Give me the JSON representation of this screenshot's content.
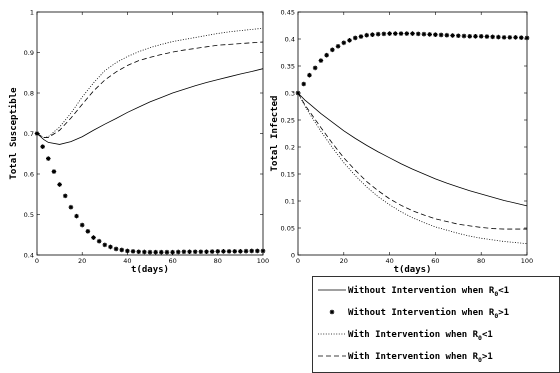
{
  "chart_data": {
    "panels": [
      {
        "type": "line",
        "xlabel": "t(days)",
        "ylabel": "Total Susceptible",
        "xlim": [
          0,
          100
        ],
        "ylim": [
          0.4,
          1.0
        ],
        "xticks": [
          "0",
          "20",
          "40",
          "60",
          "80",
          "100"
        ],
        "yticks": [
          "0.4",
          "0.5",
          "0.6",
          "0.7",
          "0.8",
          "0.9",
          "1"
        ],
        "x": [
          0,
          3,
          5,
          10,
          15,
          20,
          25,
          30,
          35,
          40,
          45,
          50,
          55,
          60,
          65,
          70,
          75,
          80,
          85,
          90,
          95,
          100
        ],
        "series": [
          {
            "name": "Without Intervention when R0<1",
            "style": "solid",
            "values": [
              0.7,
              0.685,
              0.678,
              0.673,
              0.68,
              0.692,
              0.708,
              0.723,
              0.737,
              0.752,
              0.765,
              0.778,
              0.789,
              0.8,
              0.809,
              0.818,
              0.826,
              0.833,
              0.84,
              0.847,
              0.853,
              0.86
            ]
          },
          {
            "name": "Without Intervention when R0>1",
            "style": "star",
            "values": [
              0.7,
              0.661,
              0.638,
              0.574,
              0.518,
              0.474,
              0.443,
              0.425,
              0.415,
              0.41,
              0.408,
              0.407,
              0.407,
              0.407,
              0.408,
              0.408,
              0.408,
              0.409,
              0.409,
              0.409,
              0.41,
              0.41
            ]
          },
          {
            "name": "With Intervention when R0<1",
            "style": "dotted",
            "values": [
              0.7,
              0.69,
              0.692,
              0.716,
              0.75,
              0.79,
              0.825,
              0.855,
              0.875,
              0.89,
              0.902,
              0.912,
              0.92,
              0.927,
              0.932,
              0.937,
              0.942,
              0.947,
              0.951,
              0.954,
              0.957,
              0.96
            ]
          },
          {
            "name": "With Intervention when R0>1",
            "style": "dashed",
            "values": [
              0.7,
              0.69,
              0.69,
              0.708,
              0.738,
              0.772,
              0.805,
              0.832,
              0.852,
              0.868,
              0.88,
              0.888,
              0.895,
              0.901,
              0.906,
              0.91,
              0.914,
              0.918,
              0.92,
              0.922,
              0.924,
              0.926
            ]
          }
        ]
      },
      {
        "type": "line",
        "xlabel": "t(days)",
        "ylabel": "Total Infected",
        "xlim": [
          0,
          100
        ],
        "ylim": [
          0,
          0.45
        ],
        "xticks": [
          "0",
          "20",
          "40",
          "60",
          "80",
          "100"
        ],
        "yticks": [
          "0",
          "0.05",
          "0.1",
          "0.15",
          "0.2",
          "0.25",
          "0.3",
          "0.35",
          "0.4",
          "0.45"
        ],
        "x": [
          0,
          3,
          5,
          10,
          15,
          20,
          25,
          30,
          35,
          40,
          45,
          50,
          55,
          60,
          65,
          70,
          75,
          80,
          85,
          90,
          95,
          100
        ],
        "series": [
          {
            "name": "Without Intervention when R0<1",
            "style": "solid",
            "values": [
              0.3,
              0.287,
              0.28,
              0.262,
              0.246,
              0.23,
              0.216,
              0.203,
              0.191,
              0.18,
              0.169,
              0.159,
              0.15,
              0.141,
              0.133,
              0.126,
              0.119,
              0.113,
              0.107,
              0.101,
              0.096,
              0.091
            ]
          },
          {
            "name": "Without Intervention when R0>1",
            "style": "star",
            "values": [
              0.3,
              0.32,
              0.333,
              0.36,
              0.38,
              0.393,
              0.402,
              0.407,
              0.409,
              0.41,
              0.41,
              0.41,
              0.409,
              0.408,
              0.407,
              0.406,
              0.405,
              0.405,
              0.404,
              0.403,
              0.403,
              0.402
            ]
          },
          {
            "name": "With Intervention when R0<1",
            "style": "dotted",
            "values": [
              0.3,
              0.276,
              0.262,
              0.229,
              0.199,
              0.171,
              0.147,
              0.126,
              0.108,
              0.093,
              0.08,
              0.069,
              0.06,
              0.052,
              0.046,
              0.04,
              0.035,
              0.031,
              0.028,
              0.025,
              0.023,
              0.021
            ]
          },
          {
            "name": "With Intervention when R0>1",
            "style": "dashed",
            "values": [
              0.3,
              0.278,
              0.266,
              0.236,
              0.207,
              0.18,
              0.157,
              0.136,
              0.119,
              0.104,
              0.092,
              0.082,
              0.074,
              0.067,
              0.062,
              0.057,
              0.054,
              0.051,
              0.049,
              0.048,
              0.048,
              0.048
            ]
          }
        ]
      }
    ],
    "legend": {
      "placement": "below right panel",
      "entries": [
        {
          "style": "solid",
          "prefix": "Without Intervention when R",
          "sub": "0",
          "suffix": "<1"
        },
        {
          "style": "star",
          "prefix": "Without Intervention when R",
          "sub": "0",
          "suffix": ">1"
        },
        {
          "style": "dotted",
          "prefix": "With Intervention when R",
          "sub": "0",
          "suffix": "<1"
        },
        {
          "style": "dashed",
          "prefix": "With Intervention when R",
          "sub": "0",
          "suffix": ">1"
        }
      ]
    }
  }
}
